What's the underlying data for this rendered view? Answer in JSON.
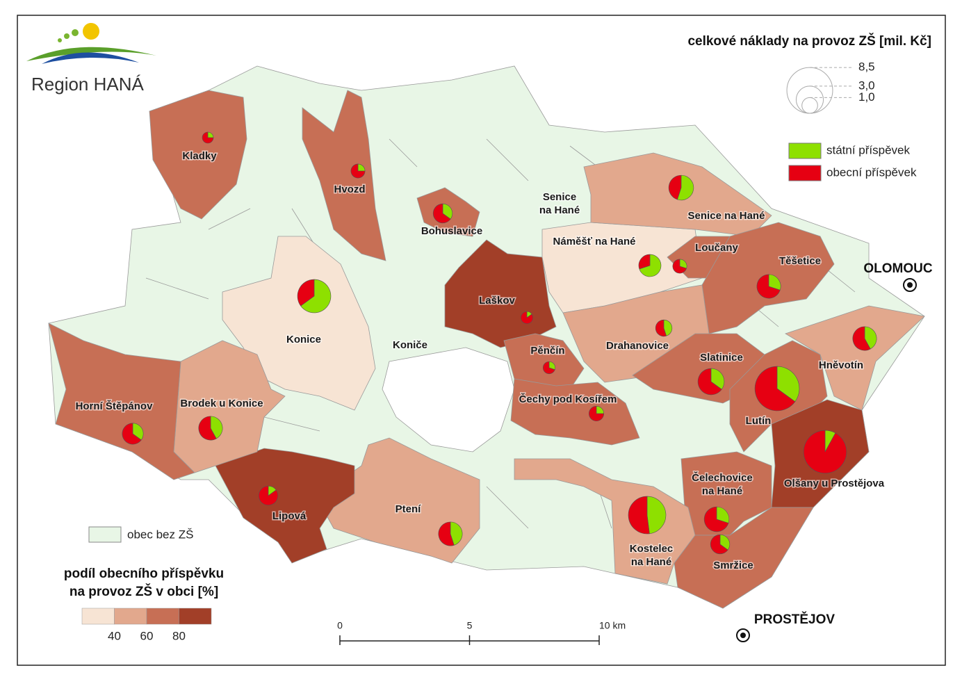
{
  "logo": "Region HANÁ",
  "places": [
    {
      "name": [
        "Kladky"
      ],
      "cost": 0.5,
      "statni": 25,
      "obecni": 75
    },
    {
      "name": [
        "Hvozd"
      ],
      "cost": 0.8,
      "statni": 25,
      "obecni": 75
    },
    {
      "name": [
        "Bohuslavice"
      ],
      "cost": 1.5,
      "statni": 35,
      "obecni": 65
    },
    {
      "name": [
        "Konice"
      ],
      "cost": 4.5,
      "statni": 65,
      "obecni": 35
    },
    {
      "name": [
        "Laškov"
      ],
      "cost": 0.6,
      "statni": 15,
      "obecni": 85
    },
    {
      "name": [
        "Pěnčín"
      ],
      "cost": 0.6,
      "statni": 30,
      "obecni": 70
    },
    {
      "name": [
        "Čechy pod Kosířem"
      ],
      "cost": 0.9,
      "statni": 25,
      "obecni": 75
    },
    {
      "name": [
        "Náměšť na Hané"
      ],
      "cost": 2.0,
      "statni": 70,
      "obecni": 30
    },
    {
      "name": [
        "Senice na Hané"
      ],
      "cost": 2.5,
      "statni": 55,
      "obecni": 45
    },
    {
      "name": [
        "Loučany"
      ],
      "cost": 0.8,
      "statni": 30,
      "obecni": 70
    },
    {
      "name": [
        "Těšetice"
      ],
      "cost": 2.3,
      "statni": 30,
      "obecni": 70
    },
    {
      "name": [
        "Drahanovice"
      ],
      "cost": 1.1,
      "statni": 45,
      "obecni": 55
    },
    {
      "name": [
        "Slatinice"
      ],
      "cost": 2.8,
      "statni": 35,
      "obecni": 65
    },
    {
      "name": [
        "Lutín"
      ],
      "cost": 8.0,
      "statni": 35,
      "obecni": 65
    },
    {
      "name": [
        "Hněvotín"
      ],
      "cost": 2.3,
      "statni": 42,
      "obecni": 58
    },
    {
      "name": [
        "Olšany u Prostějova"
      ],
      "cost": 7.5,
      "statni": 8,
      "obecni": 92
    },
    {
      "name": [
        "Čelechovice",
        "na Hané"
      ],
      "cost": 2.5,
      "statni": 30,
      "obecni": 70
    },
    {
      "name": [
        "Smržice"
      ],
      "cost": 1.5,
      "statni": 35,
      "obecni": 65
    },
    {
      "name": [
        "Kostelec",
        "na Hané"
      ],
      "cost": 5.7,
      "statni": 48,
      "obecni": 52
    },
    {
      "name": [
        "Ptení"
      ],
      "cost": 2.3,
      "statni": 45,
      "obecni": 55
    },
    {
      "name": [
        "Lipová"
      ],
      "cost": 1.5,
      "statni": 15,
      "obecni": 85
    },
    {
      "name": [
        "Brodek u Konice"
      ],
      "cost": 2.3,
      "statni": 42,
      "obecni": 58
    },
    {
      "name": [
        "Horní Štěpánov"
      ],
      "cost": 1.8,
      "statni": 35,
      "obecni": 65
    }
  ],
  "other_labels": [
    [
      "Senice",
      "na Hané"
    ],
    [
      "Koniče"
    ]
  ],
  "cities": [
    "OLOMOUC",
    "PROSTĚJOV"
  ],
  "size_legend": {
    "title": "celkové náklady na provoz ZŠ [mil. Kč]",
    "values": [
      {
        "value": 8.5,
        "label": "8,5"
      },
      {
        "value": 3.0,
        "label": "3,0"
      },
      {
        "value": 1.0,
        "label": "1,0"
      }
    ]
  },
  "contribution_legend": [
    {
      "name": "státní příspěvek",
      "color": "#8ee000"
    },
    {
      "name": "obecní příspěvek",
      "color": "#e60012"
    }
  ],
  "no_school_legend": {
    "label": "obec bez ZŠ",
    "color": "#e8f6e6"
  },
  "share_legend": {
    "title": [
      "podíl obecního příspěvku",
      "na provoz ZŠ v obci [%]"
    ],
    "colors": [
      "#f7e4d4",
      "#e2a88d",
      "#c76f55",
      "#a23f28"
    ],
    "breaks": [
      40,
      60,
      80
    ]
  },
  "scale_bar": {
    "ticks": [
      0,
      5,
      {
        "value": 10,
        "label": "10 km"
      }
    ]
  }
}
